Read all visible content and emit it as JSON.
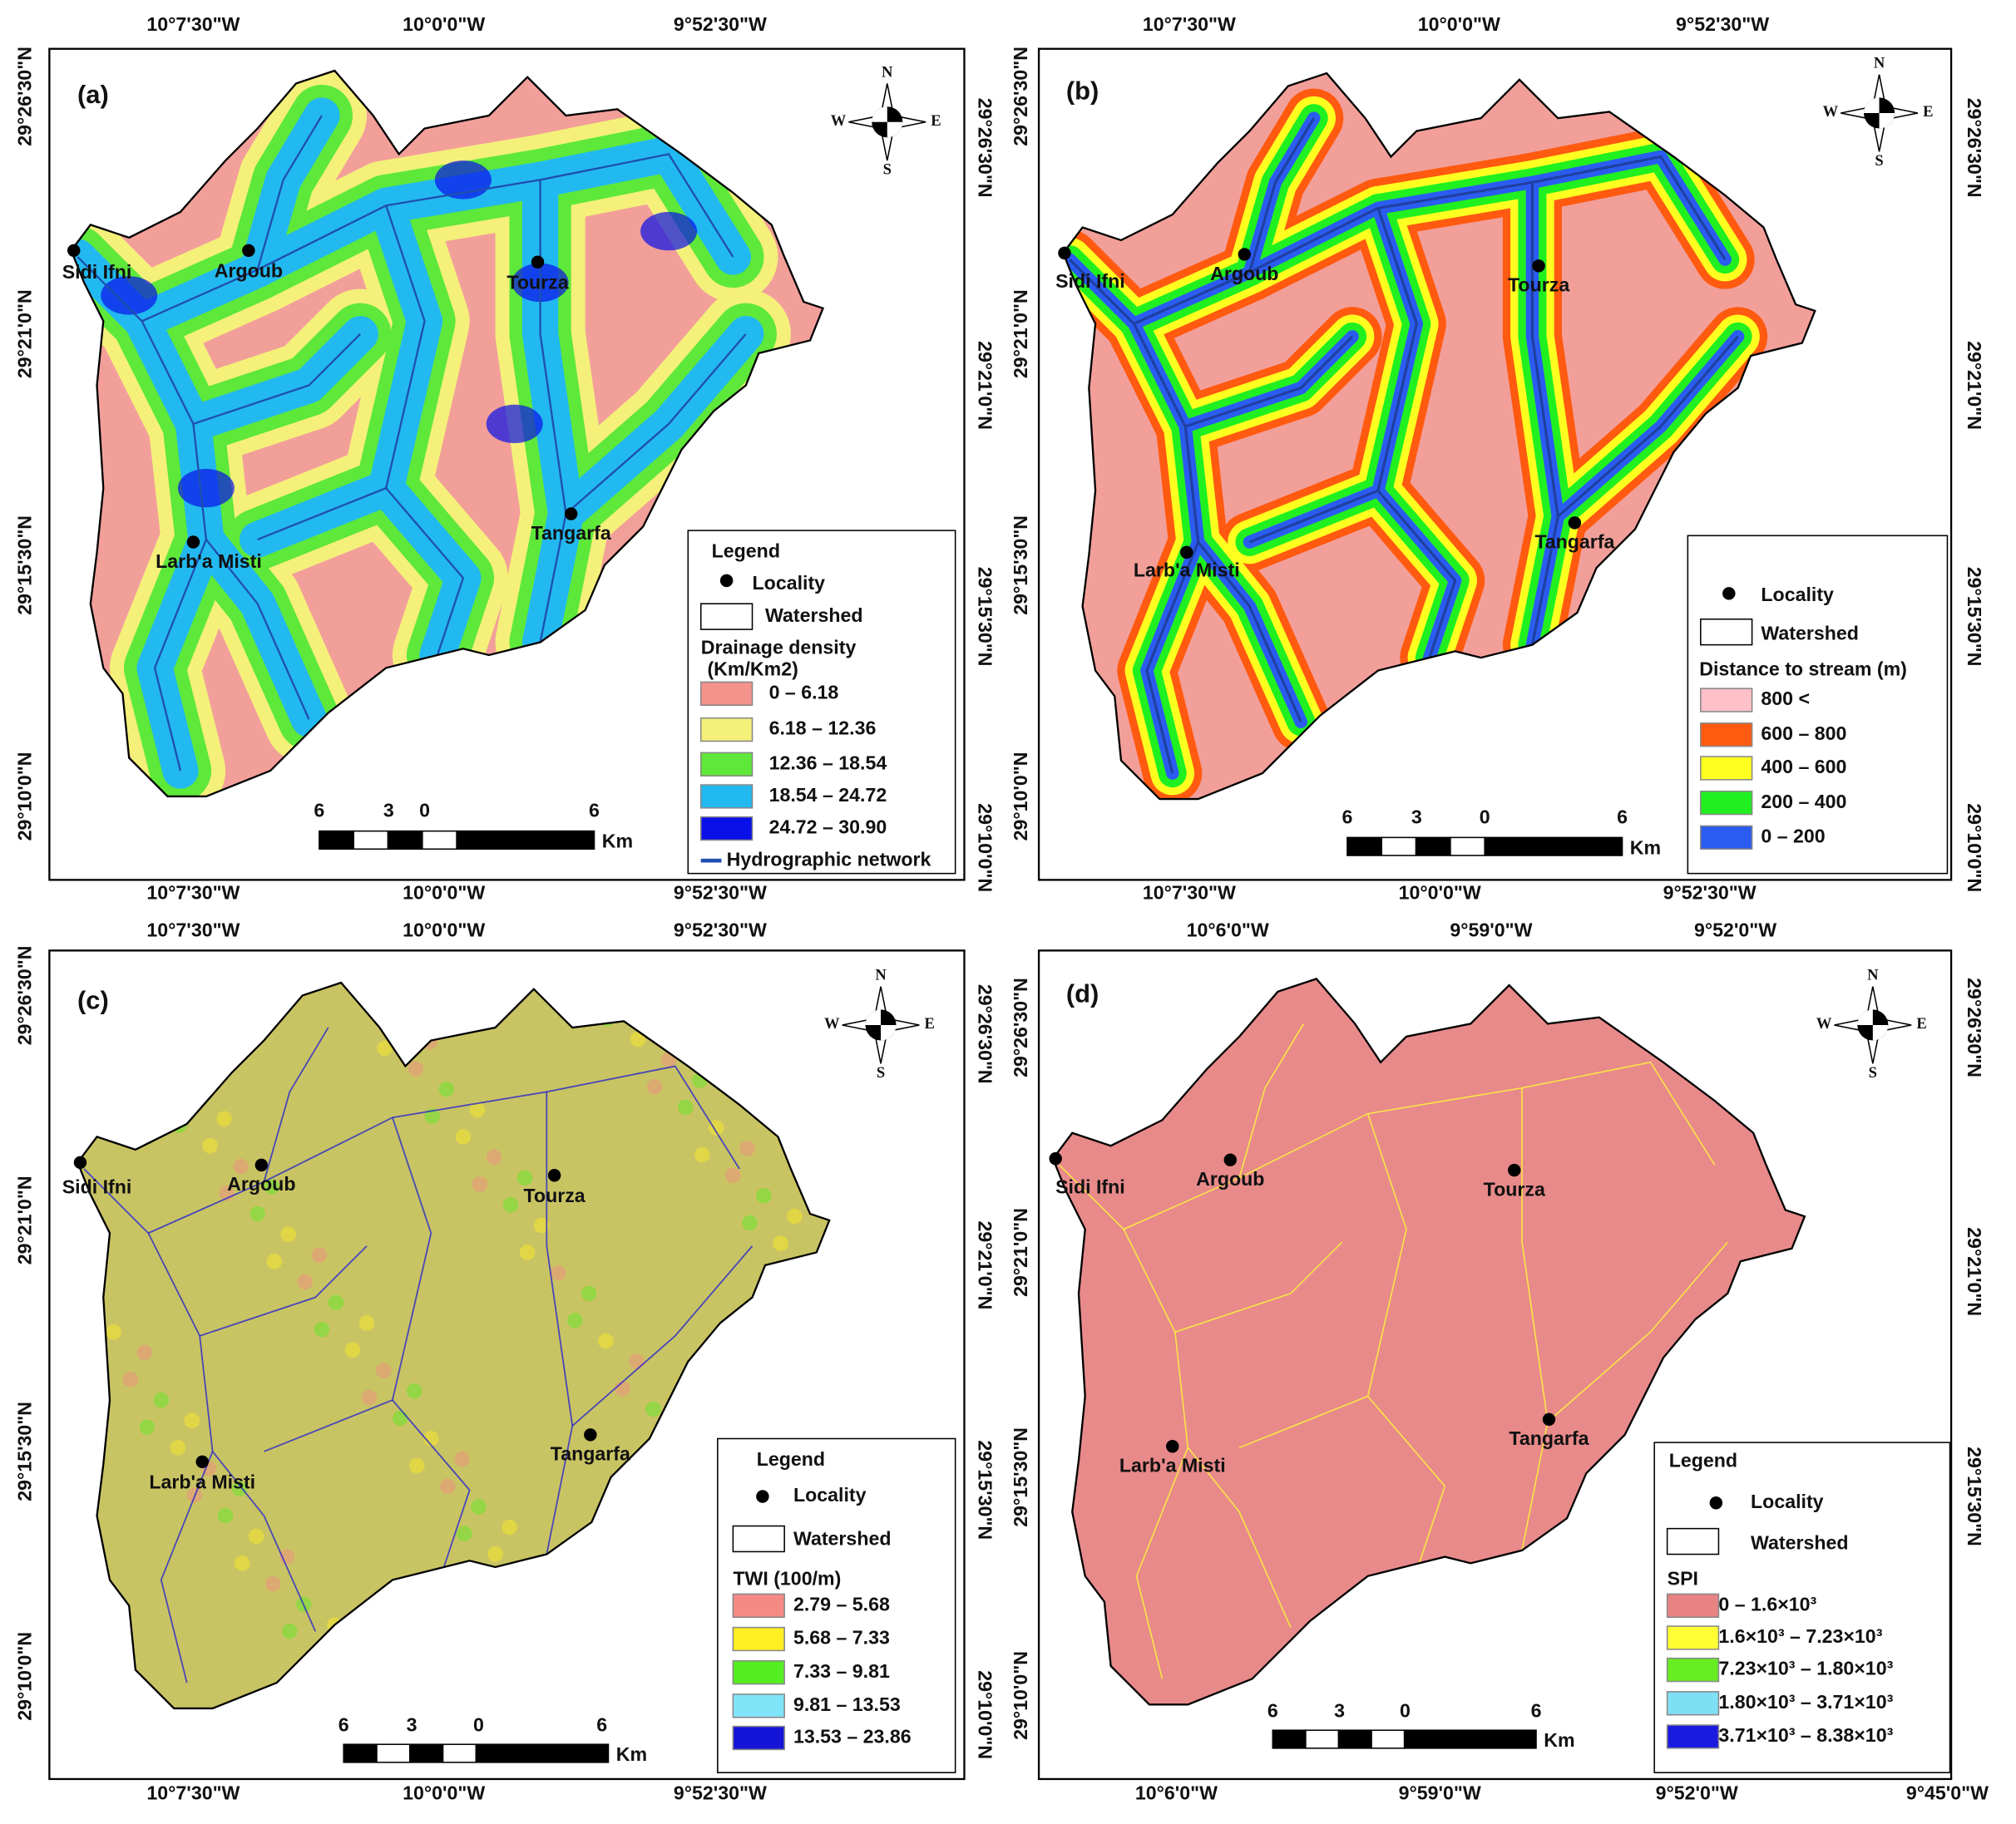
{
  "panels": [
    {
      "label": "(a)",
      "top_axis": [
        "10°7'30\"W",
        "10°0'0\"W",
        "9°52'30\"W"
      ],
      "bottom_axis": [
        "10°7'30\"W",
        "10°0'0\"W",
        "9°52'30\"W"
      ],
      "left_axis": [
        "29°26'30\"N",
        "29°21'0\"N",
        "29°15'30\"N",
        "29°10'0\"N"
      ],
      "right_axis": [
        "29°26'30\"N",
        "29°21'0\"N",
        "29°15'30\"N",
        "29°10'0\"N"
      ],
      "compass": [
        "N",
        "E",
        "S",
        "W"
      ],
      "localities": [
        "Sidi Ifni",
        "Argoub",
        "Tourza",
        "Larb'a Misti",
        "Tangarfa"
      ],
      "legend": {
        "title": "Legend",
        "locality": "Locality",
        "watershed": "Watershed",
        "variable": "Drainage density",
        "unit": "(Km/Km2)",
        "classes": [
          {
            "label": "0 – 6.18",
            "color": "#f4938c"
          },
          {
            "label": "6.18 – 12.36",
            "color": "#f5f07a"
          },
          {
            "label": "12.36 – 18.54",
            "color": "#5ee83a"
          },
          {
            "label": "18.54 – 24.72",
            "color": "#22b9f0"
          },
          {
            "label": "24.72 – 30.90",
            "color": "#0a10e8"
          }
        ],
        "network": "Hydrographic network"
      },
      "scale": {
        "ticks": [
          "6",
          "3",
          "0",
          "6"
        ],
        "unit": "Km"
      }
    },
    {
      "label": "(b)",
      "top_axis": [
        "10°7'30\"W",
        "10°0'0\"W",
        "9°52'30\"W"
      ],
      "bottom_axis": [
        "10°7'30\"W",
        "10°0'0\"W",
        "9°52'30\"W"
      ],
      "left_axis": [
        "29°26'30\"N",
        "29°21'0\"N",
        "29°15'30\"N",
        "29°10'0\"N"
      ],
      "right_axis": [
        "29°26'30\"N",
        "29°21'0\"N",
        "29°15'30\"N",
        "29°10'0\"N"
      ],
      "compass": [
        "N",
        "E",
        "S",
        "W"
      ],
      "localities": [
        "Sidi Ifni",
        "Argoub",
        "Tourza",
        "Larb'a Misti",
        "Tangarfa"
      ],
      "legend": {
        "locality": "Locality",
        "watershed": "Watershed",
        "variable": "Distance to stream (m)",
        "classes": [
          {
            "label": "800 <",
            "color": "#ffc0c8"
          },
          {
            "label": "600 – 800",
            "color": "#ff5a10"
          },
          {
            "label": "400 – 600",
            "color": "#ffff20"
          },
          {
            "label": "200 – 400",
            "color": "#20f020"
          },
          {
            "label": "0 – 200",
            "color": "#2b5cf0"
          }
        ]
      },
      "scale": {
        "ticks": [
          "6",
          "3",
          "0",
          "6"
        ],
        "unit": "Km"
      }
    },
    {
      "label": "(c)",
      "top_axis": [
        "10°7'30\"W",
        "10°0'0\"W",
        "9°52'30\"W"
      ],
      "bottom_axis": [
        "10°7'30\"W",
        "10°0'0\"W",
        "9°52'30\"W"
      ],
      "left_axis": [
        "29°26'30\"N",
        "29°21'0\"N",
        "29°15'30\"N",
        "29°10'0\"N"
      ],
      "right_axis": [
        "29°26'30\"N",
        "29°21'0\"N",
        "29°15'30\"N",
        "29°10'0\"N"
      ],
      "compass": [
        "N",
        "E",
        "S",
        "W"
      ],
      "localities": [
        "Sidi Ifni",
        "Argoub",
        "Tourza",
        "Larb'a Misti",
        "Tangarfa"
      ],
      "legend": {
        "title": "Legend",
        "locality": "Locality",
        "watershed": "Watershed",
        "variable": "TWI (100/m)",
        "classes": [
          {
            "label": "2.79 – 5.68",
            "color": "#f58a85"
          },
          {
            "label": "5.68 – 7.33",
            "color": "#ffee22"
          },
          {
            "label": "7.33 – 9.81",
            "color": "#55ee22"
          },
          {
            "label": "9.81 – 13.53",
            "color": "#80e4f8"
          },
          {
            "label": "13.53 – 23.86",
            "color": "#1515d8"
          }
        ]
      },
      "scale": {
        "ticks": [
          "6",
          "3",
          "0",
          "6"
        ],
        "unit": "Km"
      }
    },
    {
      "label": "(d)",
      "top_axis": [
        "10°6'0\"W",
        "9°59'0\"W",
        "9°52'0\"W"
      ],
      "bottom_axis": [
        "10°6'0\"W",
        "9°59'0\"W",
        "9°52'0\"W",
        "9°45'0\"W"
      ],
      "left_axis": [
        "29°26'30\"N",
        "29°21'0\"N",
        "29°15'30\"N",
        "29°10'0\"N"
      ],
      "right_axis": [
        "29°26'30\"N",
        "29°21'0\"N",
        "29°15'30\"N"
      ],
      "compass": [
        "N",
        "E",
        "S",
        "W"
      ],
      "localities": [
        "Sidi Ifni",
        "Argoub",
        "Tourza",
        "Larb'a Misti",
        "Tangarfa"
      ],
      "legend": {
        "title": "Legend",
        "locality": "Locality",
        "watershed": "Watershed",
        "variable": "SPI",
        "classes": [
          {
            "label": "0 – 1.6×10³",
            "color": "#e88383"
          },
          {
            "label": "1.6×10³ – 7.23×10³",
            "color": "#ffff33"
          },
          {
            "label": "7.23×10³ – 1.80×10³",
            "color": "#66ee22"
          },
          {
            "label": "1.80×10³ – 3.71×10³",
            "color": "#7fe0f5"
          },
          {
            "label": "3.71×10³ – 8.38×10³",
            "color": "#1a1ae0"
          }
        ]
      },
      "scale": {
        "ticks": [
          "6",
          "3",
          "0",
          "6"
        ],
        "unit": "Km"
      }
    }
  ]
}
